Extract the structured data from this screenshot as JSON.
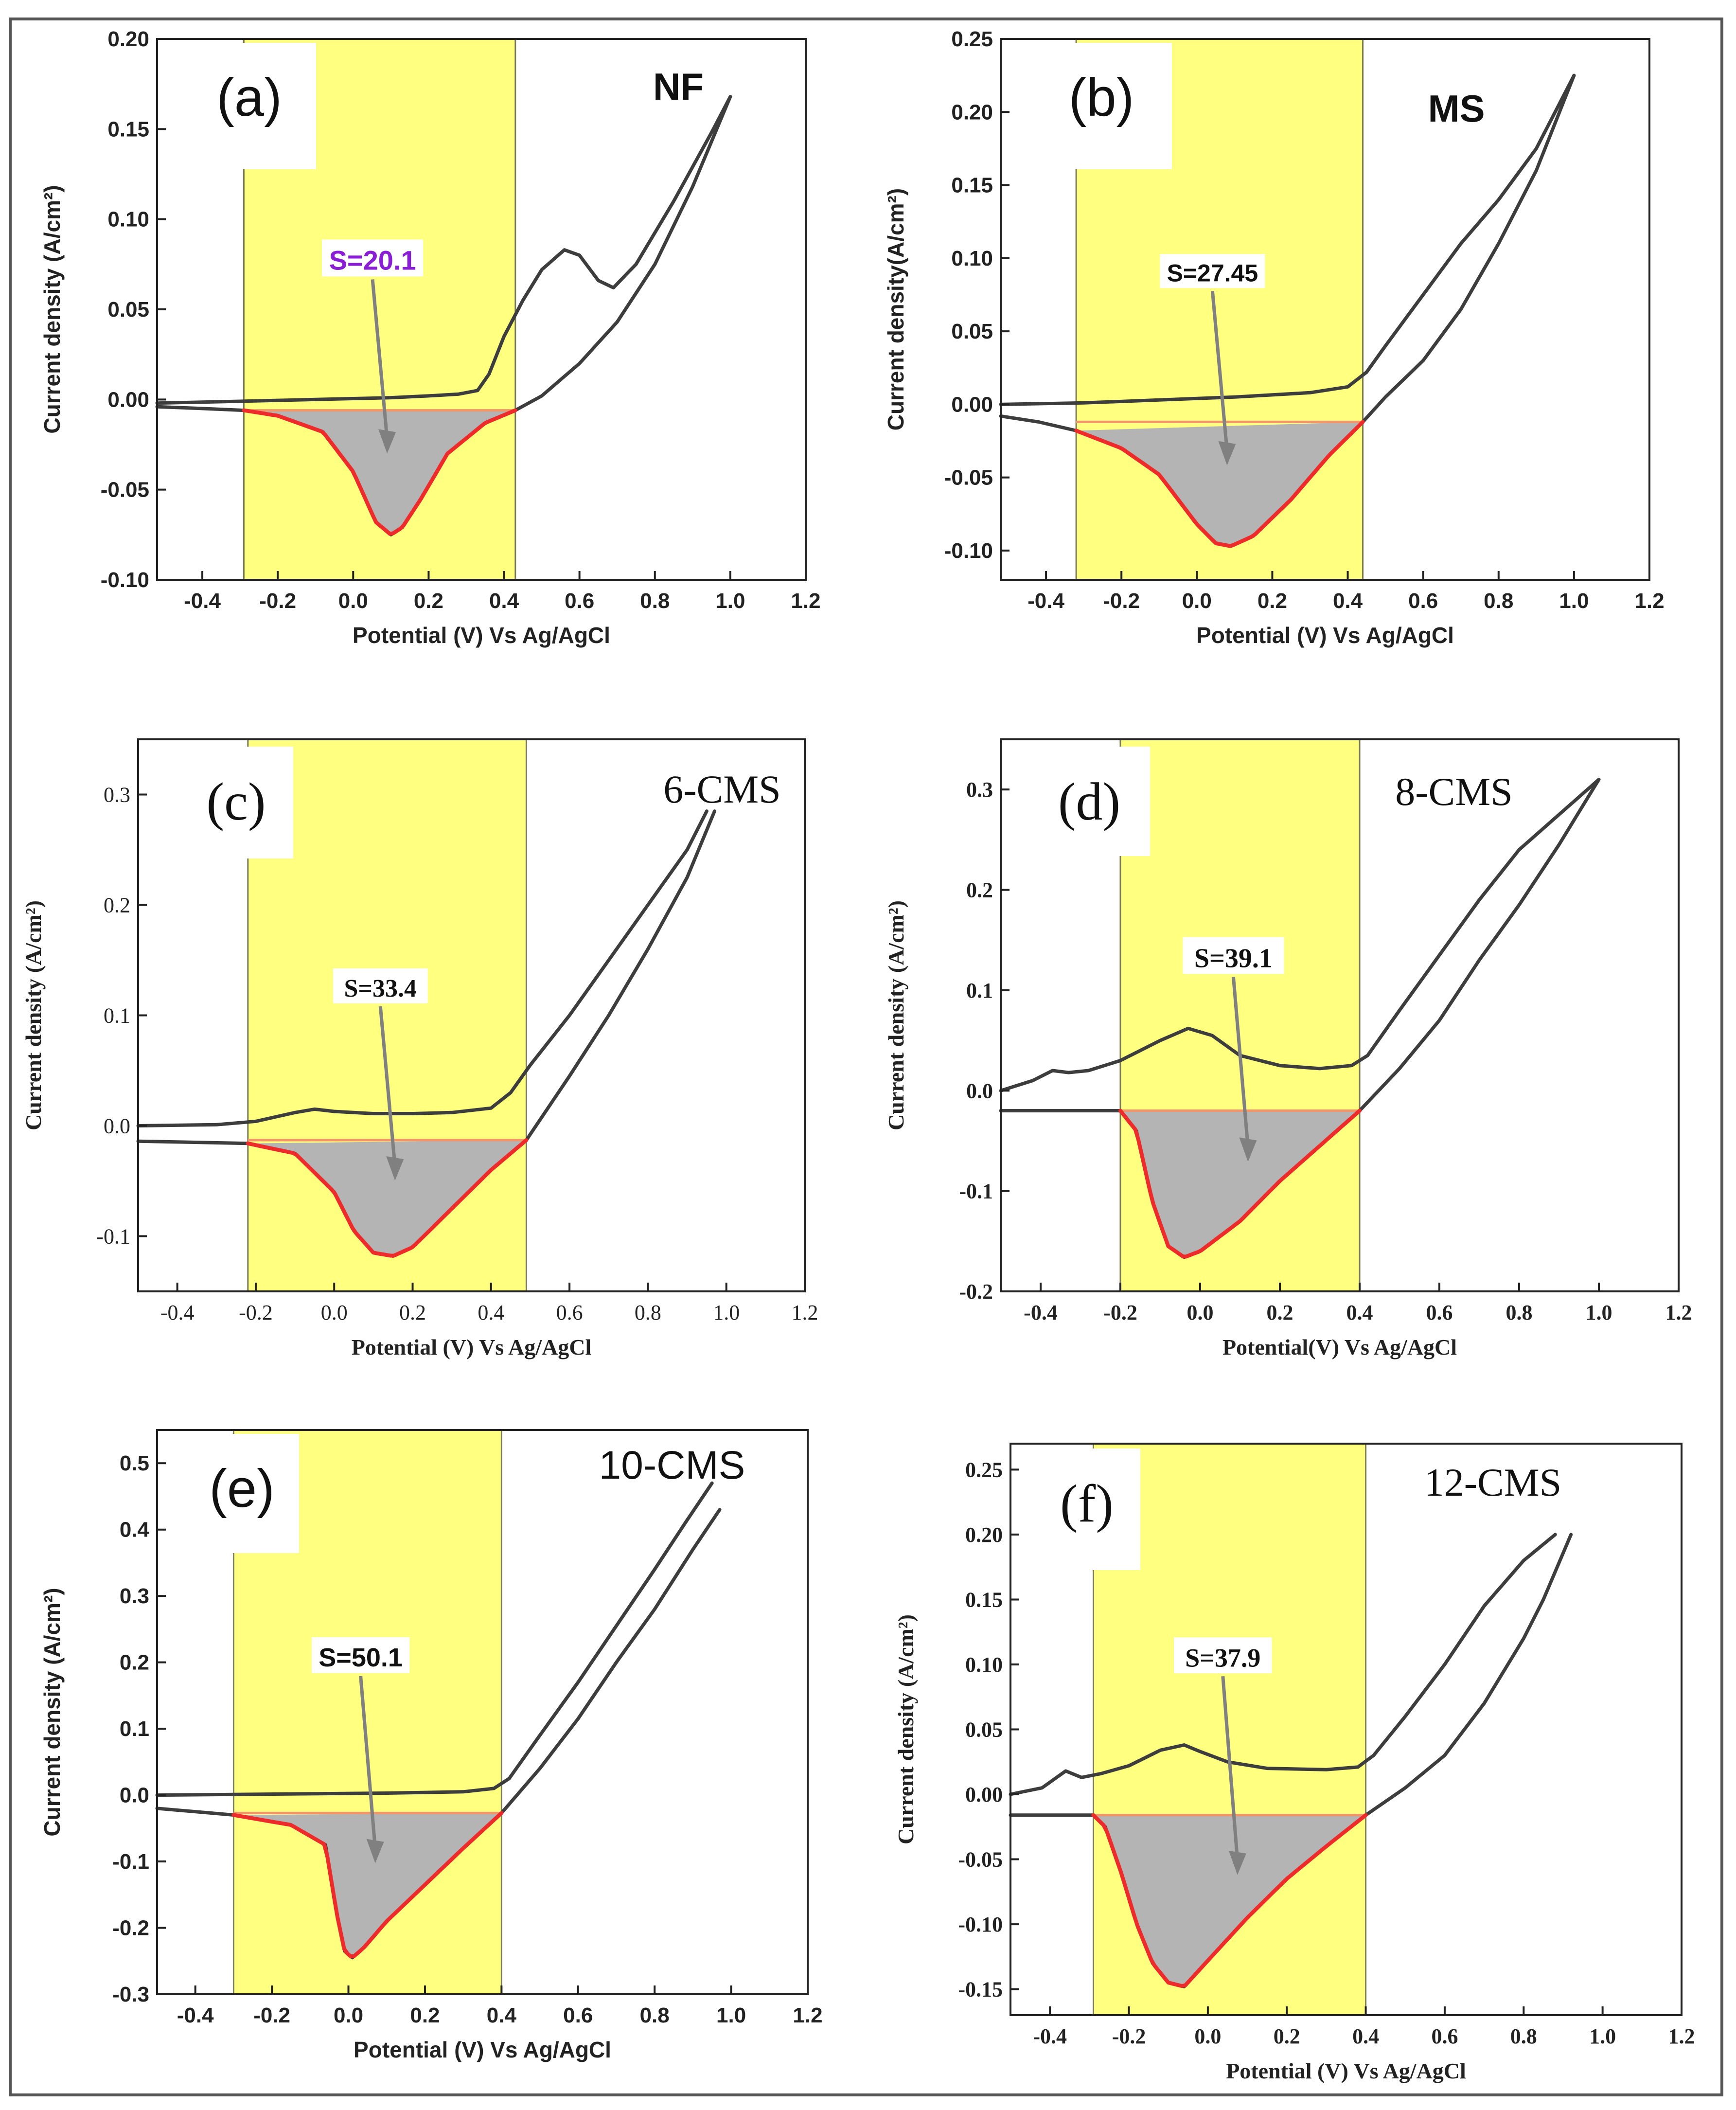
{
  "colors": {
    "background": "#ffffff",
    "frame": "#555555",
    "axis": "#222222",
    "curve": "#3d3d3d",
    "cathodic_curve": "#ee2b2b",
    "baseline": "#f2956b",
    "integrated_area": "#b4b4b4",
    "highlight": "#ffff80",
    "highlight_edge": "#7b7b55",
    "arrow": "#808080",
    "s_label_a": "#8a1ed4",
    "s_label_default": "#111111"
  },
  "chart_data": [
    {
      "id": "a",
      "type": "line",
      "panel_label": "(a)",
      "sample": "NF",
      "xlabel": "Potential (V) Vs Ag/AgCl",
      "ylabel": "Current density (A/cm²)",
      "xlim": [
        -0.52,
        1.2
      ],
      "ylim": [
        -0.1,
        0.2
      ],
      "xticks": [
        -0.4,
        -0.2,
        0.0,
        0.2,
        0.4,
        0.6,
        0.8,
        1.0,
        1.2
      ],
      "xtick_labels": [
        "-0.4",
        "-0.2",
        "0.0",
        "0.2",
        "0.4",
        "0.6",
        "0.8",
        "1.0",
        "1.2"
      ],
      "yticks": [
        -0.1,
        -0.05,
        0.0,
        0.05,
        0.1,
        0.15,
        0.2
      ],
      "ytick_labels": [
        "-0.10",
        "-0.05",
        "0.00",
        "0.05",
        "0.10",
        "0.15",
        "0.20"
      ],
      "highlight_range": [
        -0.29,
        0.43
      ],
      "integration": {
        "label": "S=20.1",
        "area": 20.1,
        "x_start": -0.29,
        "x_end": 0.43,
        "baseline": -0.006
      },
      "anodic_scan": {
        "x": [
          -0.52,
          -0.3,
          -0.1,
          0.1,
          0.2,
          0.28,
          0.33,
          0.36,
          0.4,
          0.45,
          0.5,
          0.56,
          0.6,
          0.65,
          0.69,
          0.75,
          0.85,
          0.95,
          1.0
        ],
        "y": [
          -0.002,
          -0.001,
          0.0,
          0.001,
          0.002,
          0.003,
          0.005,
          0.014,
          0.035,
          0.055,
          0.072,
          0.083,
          0.08,
          0.066,
          0.062,
          0.075,
          0.11,
          0.148,
          0.168
        ]
      },
      "cathodic_scan": {
        "x": [
          1.0,
          0.9,
          0.8,
          0.7,
          0.6,
          0.5,
          0.43,
          0.35,
          0.25,
          0.18,
          0.13,
          0.1,
          0.06,
          0.0,
          -0.08,
          -0.2,
          -0.29,
          -0.4,
          -0.52
        ],
        "y": [
          0.168,
          0.118,
          0.075,
          0.043,
          0.02,
          0.002,
          -0.006,
          -0.013,
          -0.03,
          -0.055,
          -0.071,
          -0.075,
          -0.068,
          -0.04,
          -0.018,
          -0.009,
          -0.006,
          -0.005,
          -0.004
        ]
      }
    },
    {
      "id": "b",
      "type": "line",
      "panel_label": "(b)",
      "sample": "MS",
      "xlabel": "Potential (V) Vs Ag/AgCl",
      "ylabel": "Current density(A/cm²)",
      "xlim": [
        -0.52,
        1.2
      ],
      "ylim": [
        -0.12,
        0.25
      ],
      "xticks": [
        -0.4,
        -0.2,
        0.0,
        0.2,
        0.4,
        0.6,
        0.8,
        1.0,
        1.2
      ],
      "xtick_labels": [
        "-0.4",
        "-0.2",
        "0.0",
        "0.2",
        "0.4",
        "0.6",
        "0.8",
        "1.0",
        "1.2"
      ],
      "yticks": [
        -0.1,
        -0.05,
        0.0,
        0.05,
        0.1,
        0.15,
        0.2,
        0.25
      ],
      "ytick_labels": [
        "-0.10",
        "-0.05",
        "0.00",
        "0.05",
        "0.10",
        "0.15",
        "0.20",
        "0.25"
      ],
      "highlight_range": [
        -0.32,
        0.44
      ],
      "integration": {
        "label": "S=27.45",
        "area": 27.45,
        "x_start": -0.32,
        "x_end": 0.44,
        "baseline": -0.012
      },
      "anodic_scan": {
        "x": [
          -0.52,
          -0.3,
          -0.1,
          0.1,
          0.3,
          0.4,
          0.45,
          0.5,
          0.6,
          0.7,
          0.8,
          0.9,
          1.0
        ],
        "y": [
          0.0,
          0.001,
          0.003,
          0.005,
          0.008,
          0.012,
          0.022,
          0.04,
          0.075,
          0.11,
          0.14,
          0.175,
          0.225
        ]
      },
      "cathodic_scan": {
        "x": [
          1.0,
          0.9,
          0.8,
          0.7,
          0.6,
          0.5,
          0.44,
          0.35,
          0.25,
          0.15,
          0.09,
          0.05,
          0.0,
          -0.1,
          -0.2,
          -0.32,
          -0.42,
          -0.52
        ],
        "y": [
          0.225,
          0.16,
          0.11,
          0.065,
          0.03,
          0.005,
          -0.012,
          -0.035,
          -0.065,
          -0.09,
          -0.097,
          -0.095,
          -0.082,
          -0.048,
          -0.03,
          -0.018,
          -0.012,
          -0.008
        ]
      }
    },
    {
      "id": "c",
      "type": "line",
      "panel_label": "(c)",
      "sample": "6-CMS",
      "xlabel": "Potential (V) Vs Ag/AgCl",
      "ylabel": "Current density (A/cm²)",
      "xlim": [
        -0.5,
        1.2
      ],
      "ylim": [
        -0.15,
        0.35
      ],
      "xticks": [
        -0.4,
        -0.2,
        0.0,
        0.2,
        0.4,
        0.6,
        0.8,
        1.0,
        1.2
      ],
      "xtick_labels": [
        "-0.4",
        "-0.2",
        "0.0",
        "0.2",
        "0.4",
        "0.6",
        "0.8",
        "1.0",
        "1.2"
      ],
      "yticks": [
        -0.1,
        0.0,
        0.1,
        0.2,
        0.3
      ],
      "ytick_labels": [
        "-0.1",
        "0.0",
        "0.1",
        "0.2",
        "0.3"
      ],
      "highlight_range": [
        -0.22,
        0.49
      ],
      "integration": {
        "label": "S=33.4",
        "area": 33.4,
        "x_start": -0.22,
        "x_end": 0.49,
        "baseline": -0.013
      },
      "anodic_scan": {
        "x": [
          -0.5,
          -0.3,
          -0.2,
          -0.1,
          -0.05,
          0.0,
          0.1,
          0.2,
          0.3,
          0.4,
          0.45,
          0.5,
          0.6,
          0.7,
          0.8,
          0.9,
          0.95
        ],
        "y": [
          0.0,
          0.001,
          0.004,
          0.012,
          0.015,
          0.013,
          0.011,
          0.011,
          0.012,
          0.016,
          0.03,
          0.055,
          0.1,
          0.15,
          0.2,
          0.25,
          0.285
        ]
      },
      "cathodic_scan": {
        "x": [
          0.97,
          0.9,
          0.8,
          0.7,
          0.6,
          0.49,
          0.4,
          0.3,
          0.2,
          0.15,
          0.1,
          0.05,
          0.0,
          -0.1,
          -0.22,
          -0.35,
          -0.5
        ],
        "y": [
          0.285,
          0.225,
          0.16,
          0.1,
          0.045,
          -0.013,
          -0.04,
          -0.075,
          -0.11,
          -0.118,
          -0.115,
          -0.095,
          -0.06,
          -0.025,
          -0.016,
          -0.015,
          -0.014
        ]
      }
    },
    {
      "id": "d",
      "type": "line",
      "panel_label": "(d)",
      "sample": "8-CMS",
      "xlabel": "Potential(V) Vs Ag/AgCl",
      "ylabel": "Current density (A/cm²)",
      "xlim": [
        -0.5,
        1.2
      ],
      "ylim": [
        -0.2,
        0.35
      ],
      "xticks": [
        -0.4,
        -0.2,
        0.0,
        0.2,
        0.4,
        0.6,
        0.8,
        1.0,
        1.2
      ],
      "xtick_labels": [
        "-0.4",
        "-0.2",
        "0.0",
        "0.2",
        "0.4",
        "0.6",
        "0.8",
        "1.0",
        "1.2"
      ],
      "yticks": [
        -0.2,
        -0.1,
        0.0,
        0.1,
        0.2,
        0.3
      ],
      "ytick_labels": [
        "-0.2",
        "-0.1",
        "0.0",
        "0.1",
        "0.2",
        "0.3"
      ],
      "highlight_range": [
        -0.2,
        0.4
      ],
      "integration": {
        "label": "S=39.1",
        "area": 39.1,
        "x_start": -0.2,
        "x_end": 0.4,
        "baseline": -0.02
      },
      "anodic_scan": {
        "x": [
          -0.5,
          -0.42,
          -0.37,
          -0.33,
          -0.28,
          -0.2,
          -0.1,
          -0.03,
          0.03,
          0.1,
          0.2,
          0.3,
          0.38,
          0.42,
          0.5,
          0.6,
          0.7,
          0.8,
          0.9,
          1.0
        ],
        "y": [
          0.0,
          0.01,
          0.02,
          0.018,
          0.02,
          0.03,
          0.05,
          0.062,
          0.055,
          0.035,
          0.025,
          0.022,
          0.025,
          0.035,
          0.08,
          0.135,
          0.19,
          0.24,
          0.275,
          0.31
        ]
      },
      "cathodic_scan": {
        "x": [
          1.0,
          0.9,
          0.8,
          0.7,
          0.6,
          0.5,
          0.4,
          0.3,
          0.2,
          0.1,
          0.0,
          -0.04,
          -0.08,
          -0.12,
          -0.16,
          -0.2,
          -0.3,
          -0.4,
          -0.5
        ],
        "y": [
          0.31,
          0.245,
          0.185,
          0.13,
          0.07,
          0.022,
          -0.02,
          -0.055,
          -0.09,
          -0.13,
          -0.16,
          -0.166,
          -0.155,
          -0.11,
          -0.04,
          -0.02,
          -0.02,
          -0.02,
          -0.02
        ]
      }
    },
    {
      "id": "e",
      "type": "line",
      "panel_label": "(e)",
      "sample": "10-CMS",
      "xlabel": "Potential (V) Vs Ag/AgCl",
      "ylabel": "Current density (A/cm²)",
      "xlim": [
        -0.5,
        1.2
      ],
      "ylim": [
        -0.3,
        0.55
      ],
      "xticks": [
        -0.4,
        -0.2,
        0.0,
        0.2,
        0.4,
        0.6,
        0.8,
        1.0,
        1.2
      ],
      "xtick_labels": [
        "-0.4",
        "-0.2",
        "0.0",
        "0.2",
        "0.4",
        "0.6",
        "0.8",
        "1.0",
        "1.2"
      ],
      "yticks": [
        -0.3,
        -0.2,
        -0.1,
        0.0,
        0.1,
        0.2,
        0.3,
        0.4,
        0.5
      ],
      "ytick_labels": [
        "-0.3",
        "-0.2",
        "-0.1",
        "0.0",
        "0.1",
        "0.2",
        "0.3",
        "0.4",
        "0.5"
      ],
      "highlight_range": [
        -0.3,
        0.4
      ],
      "integration": {
        "label": "S=50.1",
        "area": 50.1,
        "x_start": -0.3,
        "x_end": 0.4,
        "baseline": -0.027
      },
      "anodic_scan": {
        "x": [
          -0.5,
          -0.3,
          -0.1,
          0.1,
          0.3,
          0.38,
          0.42,
          0.5,
          0.6,
          0.7,
          0.8,
          0.88,
          0.95
        ],
        "y": [
          0.0,
          0.001,
          0.002,
          0.003,
          0.005,
          0.01,
          0.025,
          0.09,
          0.17,
          0.255,
          0.34,
          0.41,
          0.47
        ]
      },
      "cathodic_scan": {
        "x": [
          0.97,
          0.9,
          0.8,
          0.7,
          0.6,
          0.5,
          0.4,
          0.3,
          0.2,
          0.1,
          0.04,
          0.01,
          -0.01,
          -0.03,
          -0.06,
          -0.15,
          -0.3,
          -0.5
        ],
        "y": [
          0.43,
          0.37,
          0.28,
          0.2,
          0.115,
          0.04,
          -0.027,
          -0.08,
          -0.135,
          -0.19,
          -0.23,
          -0.245,
          -0.235,
          -0.18,
          -0.075,
          -0.045,
          -0.03,
          -0.02
        ]
      }
    },
    {
      "id": "f",
      "type": "line",
      "panel_label": "(f)",
      "sample": "12-CMS",
      "xlabel": "Potential (V) Vs Ag/AgCl",
      "ylabel": "Current density (A/cm²)",
      "xlim": [
        -0.5,
        1.2
      ],
      "ylim": [
        -0.17,
        0.27
      ],
      "xticks": [
        -0.4,
        -0.2,
        0.0,
        0.2,
        0.4,
        0.6,
        0.8,
        1.0,
        1.2
      ],
      "xtick_labels": [
        "-0.4",
        "-0.2",
        "0.0",
        "0.2",
        "0.4",
        "0.6",
        "0.8",
        "1.0",
        "1.2"
      ],
      "yticks": [
        -0.15,
        -0.1,
        -0.05,
        0.0,
        0.05,
        0.1,
        0.15,
        0.2,
        0.25
      ],
      "ytick_labels": [
        "-0.15",
        "-0.10",
        "-0.05",
        "0.00",
        "0.05",
        "0.10",
        "0.15",
        "0.20",
        "0.25"
      ],
      "highlight_range": [
        -0.29,
        0.4
      ],
      "integration": {
        "label": "S=37.9",
        "area": 37.9,
        "x_start": -0.29,
        "x_end": 0.4,
        "baseline": -0.016
      },
      "anodic_scan": {
        "x": [
          -0.5,
          -0.42,
          -0.36,
          -0.32,
          -0.27,
          -0.2,
          -0.12,
          -0.06,
          -0.02,
          0.05,
          0.15,
          0.3,
          0.38,
          0.42,
          0.5,
          0.6,
          0.7,
          0.8,
          0.88
        ],
        "y": [
          0.0,
          0.005,
          0.018,
          0.013,
          0.016,
          0.022,
          0.034,
          0.038,
          0.033,
          0.025,
          0.02,
          0.019,
          0.021,
          0.03,
          0.06,
          0.1,
          0.145,
          0.18,
          0.2
        ]
      },
      "cathodic_scan": {
        "x": [
          0.92,
          0.85,
          0.8,
          0.7,
          0.6,
          0.5,
          0.4,
          0.3,
          0.2,
          0.1,
          0.0,
          -0.06,
          -0.1,
          -0.14,
          -0.18,
          -0.22,
          -0.26,
          -0.29,
          -0.4,
          -0.5
        ],
        "y": [
          0.2,
          0.15,
          0.12,
          0.07,
          0.03,
          0.005,
          -0.016,
          -0.04,
          -0.065,
          -0.095,
          -0.128,
          -0.148,
          -0.145,
          -0.13,
          -0.1,
          -0.06,
          -0.025,
          -0.016,
          -0.016,
          -0.016
        ]
      }
    }
  ]
}
